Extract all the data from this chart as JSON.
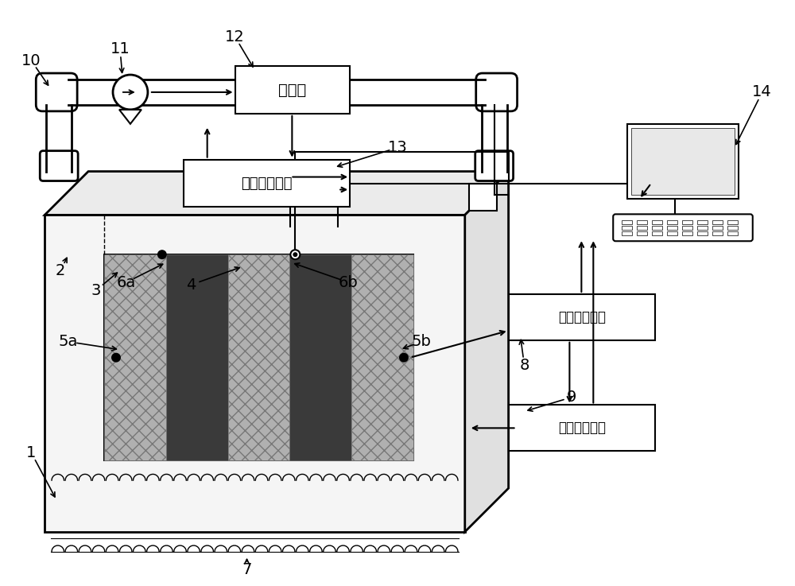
{
  "bg_color": "#ffffff",
  "lc": "#000000",
  "box_texts": {
    "humidifier": "加湿器",
    "humidity_ctrl": "湿度控制系统",
    "dielectric": "介电谱测试仪",
    "temp_ctrl": "温度控制系统"
  },
  "panel_colors_light": "#b0b0b0",
  "panel_colors_dark": "#3a3a3a",
  "chamber_face": "#f5f5f5",
  "chamber_side": "#e0e0e0",
  "chamber_top": "#ebebeb"
}
